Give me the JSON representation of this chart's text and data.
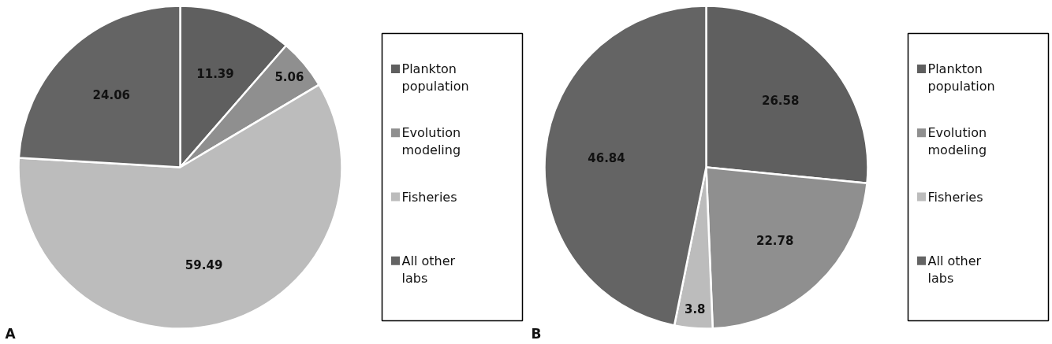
{
  "chart_data": [
    {
      "type": "pie",
      "categories": [
        "Plankton population",
        "Evolution modeling",
        "Fisheries",
        "All other labs"
      ],
      "values": [
        11.39,
        5.06,
        59.49,
        24.06
      ],
      "colors": [
        "#5f5f5f",
        "#8f8f8f",
        "#bcbcbc",
        "#646464"
      ],
      "data_labels": true,
      "legend": "right",
      "annotations": [
        "A"
      ]
    },
    {
      "type": "pie",
      "categories": [
        "Plankton population",
        "Evolution modeling",
        "Fisheries",
        "All other labs"
      ],
      "values": [
        26.58,
        22.78,
        3.8,
        46.84
      ],
      "colors": [
        "#5f5f5f",
        "#8f8f8f",
        "#bcbcbc",
        "#646464"
      ],
      "data_labels": true,
      "legend": "right",
      "annotations": [
        "B"
      ]
    }
  ]
}
